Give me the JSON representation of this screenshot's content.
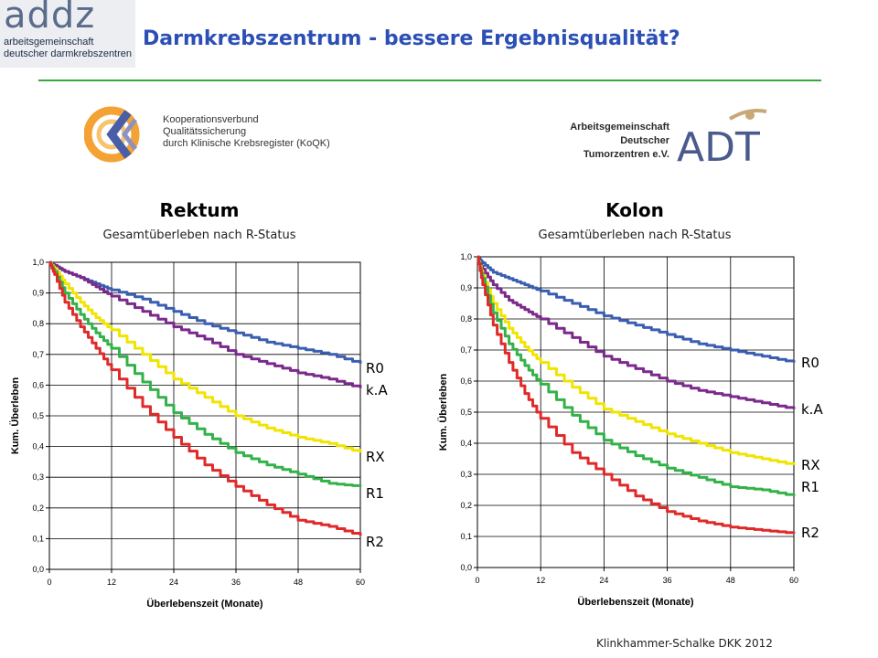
{
  "header": {
    "logo_word": "addz",
    "logo_line1": "arbeitsgemeinschaft",
    "logo_line2": "deutscher darmkrebszentren",
    "title": "Darmkrebszentrum - bessere Ergebnisqualität?"
  },
  "partner_logos": {
    "koqk": {
      "line1": "Kooperationsverbund",
      "line2": "Qualitätssicherung",
      "line3": "durch Klinische Krebsregister (KoQK)"
    },
    "adt": {
      "line1": "Arbeitsgemeinschaft",
      "line2": "Deutscher",
      "line3": "Tumorzentren e.V.",
      "mark": "ADT"
    }
  },
  "colors": {
    "title": "#2c4fb6",
    "rule": "#3aa53a",
    "R0": "#3a5fb0",
    "k.A": "#7b2a8c",
    "RX": "#f0e400",
    "R1": "#34b24a",
    "R2": "#e02a2a"
  },
  "footer": "Klinkhammer-Schalke DKK 2012",
  "chart_data": [
    {
      "type": "line",
      "title": "Rektum",
      "subtitle": "Gesamtüberleben nach R-Status",
      "xlabel": "Überlebenszeit (Monate)",
      "ylabel": "Kum. Überleben",
      "xlim": [
        0,
        60
      ],
      "ylim": [
        0,
        1
      ],
      "x_ticks": [
        "0",
        "12",
        "24",
        "36",
        "48",
        "60"
      ],
      "y_ticks": [
        "0,0",
        "0,1",
        "0,2",
        "0,3",
        "0,4",
        "0,5",
        "0,6",
        "0,7",
        "0,8",
        "0,9",
        "1,0"
      ],
      "grid": true,
      "x": [
        0,
        1,
        3,
        6,
        9,
        12,
        18,
        24,
        30,
        36,
        42,
        48,
        54,
        60
      ],
      "series": [
        {
          "name": "R0",
          "values": [
            1.0,
            0.99,
            0.97,
            0.95,
            0.93,
            0.91,
            0.88,
            0.84,
            0.8,
            0.77,
            0.74,
            0.72,
            0.7,
            0.67
          ]
        },
        {
          "name": "k.A",
          "values": [
            1.0,
            0.99,
            0.97,
            0.95,
            0.92,
            0.89,
            0.84,
            0.79,
            0.75,
            0.7,
            0.67,
            0.64,
            0.62,
            0.59
          ]
        },
        {
          "name": "RX",
          "values": [
            1.0,
            0.98,
            0.93,
            0.87,
            0.82,
            0.78,
            0.7,
            0.62,
            0.56,
            0.5,
            0.46,
            0.43,
            0.41,
            0.38
          ]
        },
        {
          "name": "R1",
          "values": [
            1.0,
            0.97,
            0.9,
            0.83,
            0.77,
            0.72,
            0.61,
            0.51,
            0.44,
            0.38,
            0.34,
            0.31,
            0.28,
            0.27
          ]
        },
        {
          "name": "R2",
          "values": [
            1.0,
            0.96,
            0.87,
            0.79,
            0.72,
            0.65,
            0.53,
            0.43,
            0.34,
            0.27,
            0.21,
            0.16,
            0.14,
            0.11
          ]
        }
      ]
    },
    {
      "type": "line",
      "title": "Kolon",
      "subtitle": "Gesamtüberleben nach R-Status",
      "xlabel": "Überlebenszeit (Monate)",
      "ylabel": "Kum. Überleben",
      "xlim": [
        0,
        60
      ],
      "ylim": [
        0,
        1
      ],
      "x_ticks": [
        "0",
        "12",
        "24",
        "36",
        "48",
        "60"
      ],
      "y_ticks": [
        "0,0",
        "0,1",
        "0,2",
        "0,3",
        "0,4",
        "0,5",
        "0,6",
        "0,7",
        "0,8",
        "0,9",
        "1,0"
      ],
      "grid": true,
      "x": [
        0,
        1,
        3,
        6,
        9,
        12,
        18,
        24,
        30,
        36,
        42,
        48,
        54,
        60
      ],
      "series": [
        {
          "name": "R0",
          "values": [
            1.0,
            0.98,
            0.95,
            0.93,
            0.91,
            0.89,
            0.85,
            0.81,
            0.78,
            0.75,
            0.72,
            0.7,
            0.68,
            0.66
          ]
        },
        {
          "name": "k.A",
          "values": [
            1.0,
            0.96,
            0.91,
            0.86,
            0.83,
            0.8,
            0.74,
            0.68,
            0.64,
            0.6,
            0.57,
            0.55,
            0.53,
            0.51
          ]
        },
        {
          "name": "RX",
          "values": [
            1.0,
            0.94,
            0.85,
            0.77,
            0.71,
            0.66,
            0.58,
            0.51,
            0.47,
            0.43,
            0.4,
            0.37,
            0.35,
            0.33
          ]
        },
        {
          "name": "R1",
          "values": [
            1.0,
            0.93,
            0.82,
            0.72,
            0.65,
            0.59,
            0.49,
            0.41,
            0.36,
            0.32,
            0.29,
            0.26,
            0.25,
            0.23
          ]
        },
        {
          "name": "R2",
          "values": [
            1.0,
            0.91,
            0.78,
            0.66,
            0.56,
            0.48,
            0.37,
            0.3,
            0.23,
            0.18,
            0.15,
            0.13,
            0.12,
            0.11
          ]
        }
      ]
    }
  ]
}
